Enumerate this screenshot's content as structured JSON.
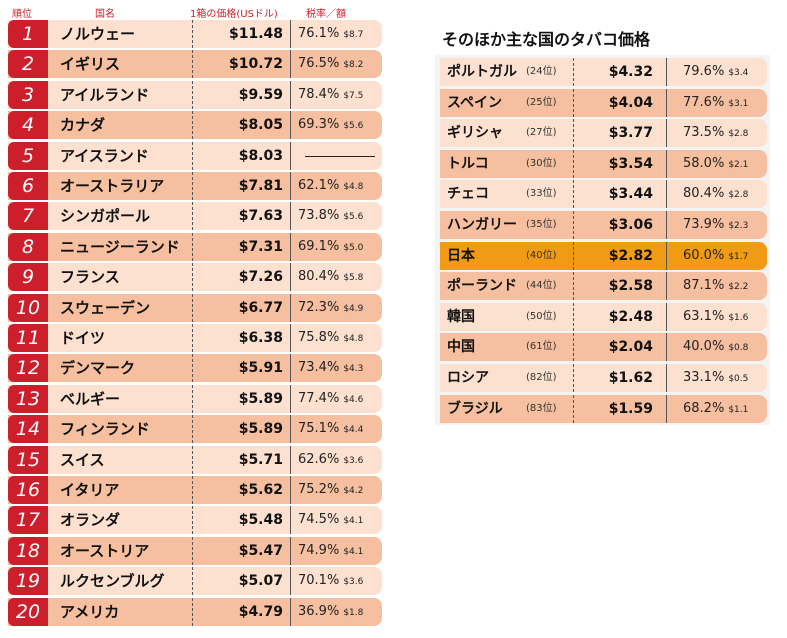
{
  "headers": {
    "rank": "順位",
    "country": "国名",
    "price": "1箱の価格(USドル)",
    "tax": "税率／額"
  },
  "top20": [
    {
      "rank": "1",
      "country": "ノルウェー",
      "price": "$11.48",
      "rate": "76.1%",
      "amount": "$8.7"
    },
    {
      "rank": "2",
      "country": "イギリス",
      "price": "$10.72",
      "rate": "76.5%",
      "amount": "$8.2"
    },
    {
      "rank": "3",
      "country": "アイルランド",
      "price": "$9.59",
      "rate": "78.4%",
      "amount": "$7.5"
    },
    {
      "rank": "4",
      "country": "カナダ",
      "price": "$8.05",
      "rate": "69.3%",
      "amount": "$5.6"
    },
    {
      "rank": "5",
      "country": "アイスランド",
      "price": "$8.03",
      "rate": "",
      "amount": ""
    },
    {
      "rank": "6",
      "country": "オーストラリア",
      "price": "$7.81",
      "rate": "62.1%",
      "amount": "$4.8"
    },
    {
      "rank": "7",
      "country": "シンガポール",
      "price": "$7.63",
      "rate": "73.8%",
      "amount": "$5.6"
    },
    {
      "rank": "8",
      "country": "ニュージーランド",
      "price": "$7.31",
      "rate": "69.1%",
      "amount": "$5.0"
    },
    {
      "rank": "9",
      "country": "フランス",
      "price": "$7.26",
      "rate": "80.4%",
      "amount": "$5.8"
    },
    {
      "rank": "10",
      "country": "スウェーデン",
      "price": "$6.77",
      "rate": "72.3%",
      "amount": "$4.9"
    },
    {
      "rank": "11",
      "country": "ドイツ",
      "price": "$6.38",
      "rate": "75.8%",
      "amount": "$4.8"
    },
    {
      "rank": "12",
      "country": "デンマーク",
      "price": "$5.91",
      "rate": "73.4%",
      "amount": "$4.3"
    },
    {
      "rank": "13",
      "country": "ベルギー",
      "price": "$5.89",
      "rate": "77.4%",
      "amount": "$4.6"
    },
    {
      "rank": "14",
      "country": "フィンランド",
      "price": "$5.89",
      "rate": "75.1%",
      "amount": "$4.4"
    },
    {
      "rank": "15",
      "country": "スイス",
      "price": "$5.71",
      "rate": "62.6%",
      "amount": "$3.6"
    },
    {
      "rank": "16",
      "country": "イタリア",
      "price": "$5.62",
      "rate": "75.2%",
      "amount": "$4.2"
    },
    {
      "rank": "17",
      "country": "オランダ",
      "price": "$5.48",
      "rate": "74.5%",
      "amount": "$4.1"
    },
    {
      "rank": "18",
      "country": "オーストリア",
      "price": "$5.47",
      "rate": "74.9%",
      "amount": "$4.1"
    },
    {
      "rank": "19",
      "country": "ルクセンブルグ",
      "price": "$5.07",
      "rate": "70.1%",
      "amount": "$3.6"
    },
    {
      "rank": "20",
      "country": "アメリカ",
      "price": "$4.79",
      "rate": "36.9%",
      "amount": "$1.8"
    }
  ],
  "others_title": "そのほか主な国のタバコ価格",
  "others": [
    {
      "country": "ポルトガル",
      "rank": "(24位)",
      "price": "$4.32",
      "rate": "79.6%",
      "amount": "$3.4"
    },
    {
      "country": "スペイン",
      "rank": "(25位)",
      "price": "$4.04",
      "rate": "77.6%",
      "amount": "$3.1"
    },
    {
      "country": "ギリシャ",
      "rank": "(27位)",
      "price": "$3.77",
      "rate": "73.5%",
      "amount": "$2.8"
    },
    {
      "country": "トルコ",
      "rank": "(30位)",
      "price": "$3.54",
      "rate": "58.0%",
      "amount": "$2.1"
    },
    {
      "country": "チェコ",
      "rank": "(33位)",
      "price": "$3.44",
      "rate": "80.4%",
      "amount": "$2.8"
    },
    {
      "country": "ハンガリー",
      "rank": "(35位)",
      "price": "$3.06",
      "rate": "73.9%",
      "amount": "$2.3"
    },
    {
      "country": "日本",
      "rank": "(40位)",
      "price": "$2.82",
      "rate": "60.0%",
      "amount": "$1.7"
    },
    {
      "country": "ポーランド",
      "rank": "(44位)",
      "price": "$2.58",
      "rate": "87.1%",
      "amount": "$2.2"
    },
    {
      "country": "韓国",
      "rank": "(50位)",
      "price": "$2.48",
      "rate": "63.1%",
      "amount": "$1.6"
    },
    {
      "country": "中国",
      "rank": "(61位)",
      "price": "$2.04",
      "rate": "40.0%",
      "amount": "$0.8"
    },
    {
      "country": "ロシア",
      "rank": "(82位)",
      "price": "$1.62",
      "rate": "33.1%",
      "amount": "$0.5"
    },
    {
      "country": "ブラジル",
      "rank": "(83位)",
      "price": "$1.59",
      "rate": "68.2%",
      "amount": "$1.1"
    }
  ],
  "colors": {
    "rank_bg": "#cc1e2b",
    "row_light": "#fce0d0",
    "row_dark": "#f5bfa0",
    "highlight": "#f19a14"
  }
}
